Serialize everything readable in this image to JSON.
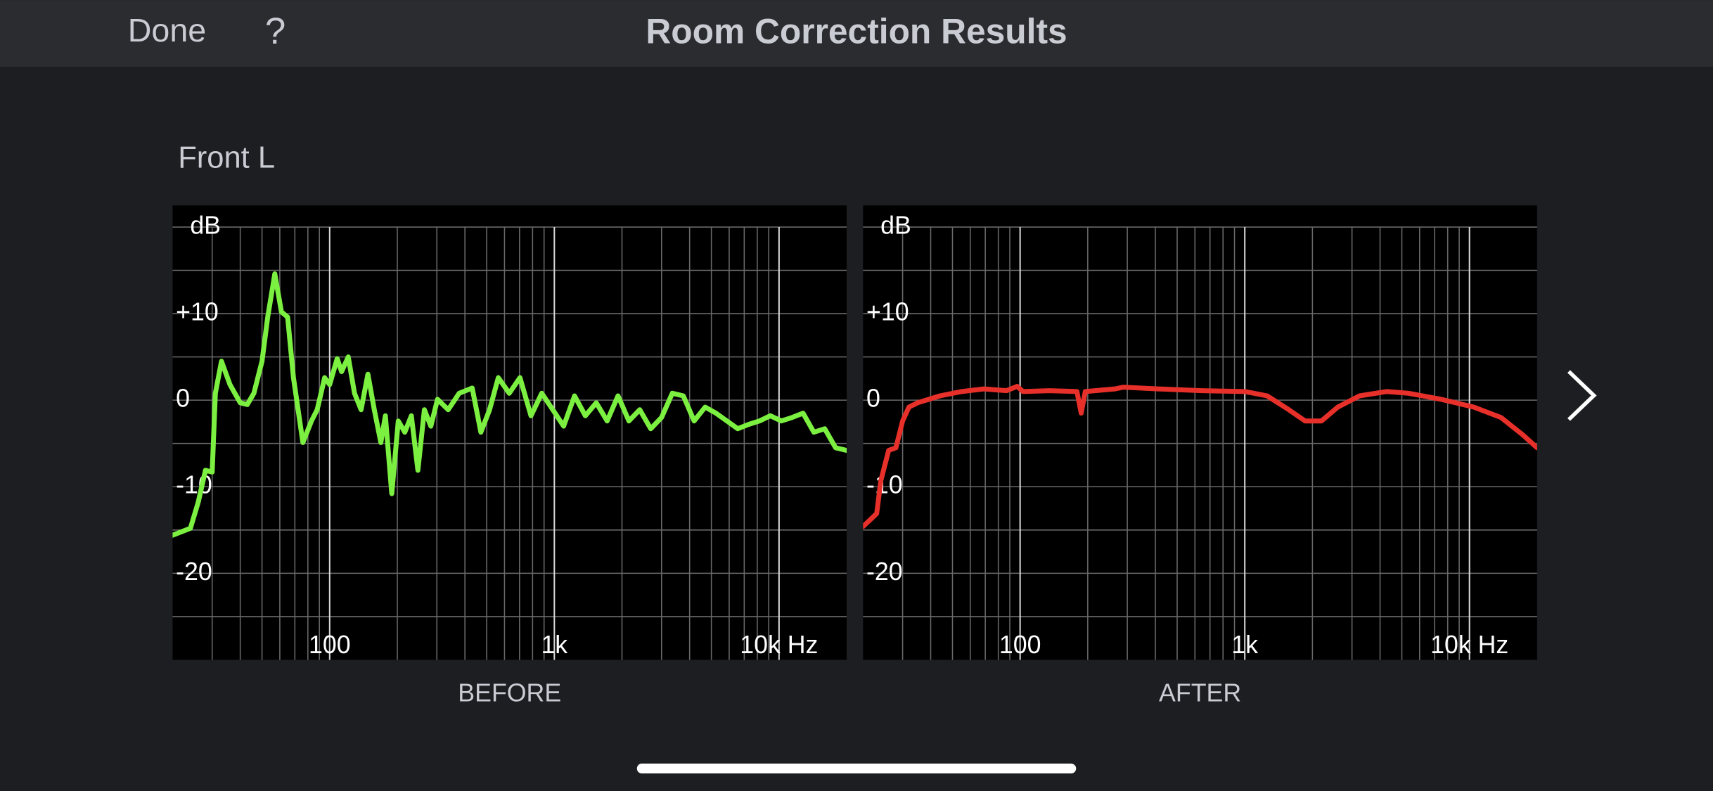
{
  "header": {
    "done": "Done",
    "help": "?",
    "title": "Room Correction Results"
  },
  "section_label": "Front L",
  "chart_data": [
    {
      "type": "line",
      "title": "BEFORE",
      "ylabel": "dB",
      "color": "#7cf040",
      "log_x": true,
      "grid": true,
      "xlim": [
        20,
        20000
      ],
      "ylim": [
        -30,
        22.5
      ],
      "xticks": [
        100,
        {
          "value": 1000,
          "label": "1k"
        },
        {
          "value": 10000,
          "label": "10k Hz"
        }
      ],
      "yticks": [
        {
          "value": 10,
          "label": "+10"
        },
        0,
        -10,
        -20
      ],
      "x_minor_grid": [
        30,
        40,
        50,
        60,
        70,
        80,
        90,
        200,
        300,
        400,
        500,
        600,
        700,
        800,
        900,
        2000,
        3000,
        4000,
        5000,
        6000,
        7000,
        8000,
        9000
      ],
      "y_minor_grid": [
        -25,
        -15,
        -5,
        5,
        15,
        20
      ],
      "x": [
        20,
        24,
        26,
        28,
        30,
        31,
        33,
        36,
        40,
        43,
        46,
        50,
        53,
        57,
        61,
        65,
        69,
        76,
        83,
        88,
        95,
        100,
        108,
        113,
        121,
        129,
        138,
        148,
        158,
        169,
        177,
        189,
        202,
        216,
        231,
        247,
        264,
        282,
        302,
        337,
        377,
        431,
        471,
        515,
        563,
        630,
        703,
        787,
        879,
        984,
        1100,
        1230,
        1374,
        1536,
        1718,
        1920,
        2147,
        2400,
        2685,
        3000,
        3350,
        3750,
        4190,
        4690,
        5240,
        5860,
        6550,
        7320,
        8190,
        9150,
        10230,
        11430,
        12790,
        14290,
        15970,
        17860,
        20000
      ],
      "values": [
        -15.6,
        -14.8,
        -11.8,
        -8.1,
        -8.3,
        0.8,
        4.5,
        1.8,
        -0.3,
        -0.5,
        0.8,
        4.5,
        9.6,
        14.6,
        10.2,
        9.6,
        2.6,
        -4.9,
        -2.4,
        -1.1,
        2.6,
        1.8,
        4.8,
        3.3,
        5.0,
        0.8,
        -1.1,
        3.0,
        -1.1,
        -4.9,
        -1.8,
        -10.8,
        -2.4,
        -3.7,
        -1.8,
        -8.1,
        -1.1,
        -3.0,
        0.1,
        -1.1,
        0.8,
        1.4,
        -3.7,
        -1.1,
        2.6,
        0.8,
        2.6,
        -1.8,
        0.8,
        -1.1,
        -3.0,
        0.5,
        -1.8,
        -0.3,
        -2.4,
        0.5,
        -2.4,
        -1.1,
        -3.3,
        -2.0,
        0.8,
        0.5,
        -2.4,
        -0.8,
        -1.5,
        -2.4,
        -3.3,
        -2.8,
        -2.4,
        -1.8,
        -2.4,
        -2.0,
        -1.5,
        -3.7,
        -3.3,
        -5.5,
        -5.8
      ]
    },
    {
      "type": "line",
      "title": "AFTER",
      "ylabel": "dB",
      "color": "#e8302a",
      "log_x": true,
      "grid": true,
      "xlim": [
        20,
        20000
      ],
      "ylim": [
        -30,
        22.5
      ],
      "xticks": [
        100,
        {
          "value": 1000,
          "label": "1k"
        },
        {
          "value": 10000,
          "label": "10k Hz"
        }
      ],
      "yticks": [
        {
          "value": 10,
          "label": "+10"
        },
        0,
        -10,
        -20
      ],
      "x_minor_grid": [
        30,
        40,
        50,
        60,
        70,
        80,
        90,
        200,
        300,
        400,
        500,
        600,
        700,
        800,
        900,
        2000,
        3000,
        4000,
        5000,
        6000,
        7000,
        8000,
        9000
      ],
      "y_minor_grid": [
        -25,
        -15,
        -5,
        5,
        15,
        20
      ],
      "x": [
        20,
        23,
        24,
        26,
        28,
        30,
        32,
        35,
        44,
        55,
        69,
        87,
        97,
        103,
        135,
        179,
        187,
        195,
        264,
        288,
        412,
        644,
        1000,
        1257,
        1570,
        1857,
        2195,
        2594,
        3243,
        4287,
        5357,
        7482,
        10450,
        13810,
        17260,
        20000
      ],
      "values": [
        -14.6,
        -13.1,
        -9.3,
        -5.8,
        -5.5,
        -2.4,
        -0.8,
        -0.3,
        0.5,
        1.0,
        1.3,
        1.1,
        1.6,
        1.0,
        1.1,
        1.0,
        -1.5,
        1.0,
        1.3,
        1.5,
        1.3,
        1.1,
        1.0,
        0.5,
        -1.1,
        -2.4,
        -2.4,
        -0.8,
        0.5,
        1.0,
        0.8,
        0.1,
        -0.8,
        -2.0,
        -4.0,
        -5.5
      ]
    }
  ]
}
